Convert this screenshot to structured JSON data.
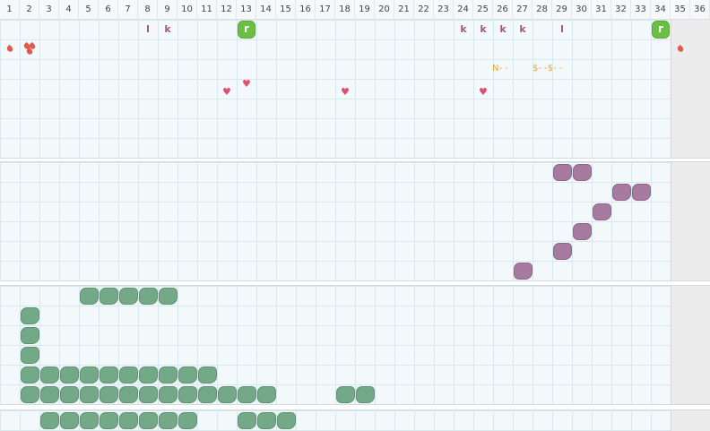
{
  "columns": [
    1,
    2,
    3,
    4,
    5,
    6,
    7,
    8,
    9,
    10,
    11,
    12,
    13,
    14,
    15,
    16,
    17,
    18,
    19,
    20,
    21,
    22,
    23,
    24,
    25,
    26,
    27,
    28,
    29,
    30,
    31,
    32,
    33,
    34,
    35,
    36
  ],
  "track_labels": [
    "l",
    "k",
    "r",
    "k",
    "k",
    "k",
    "k",
    "l",
    "r"
  ],
  "markers": [
    "N- -",
    "$- -$- -"
  ]
}
